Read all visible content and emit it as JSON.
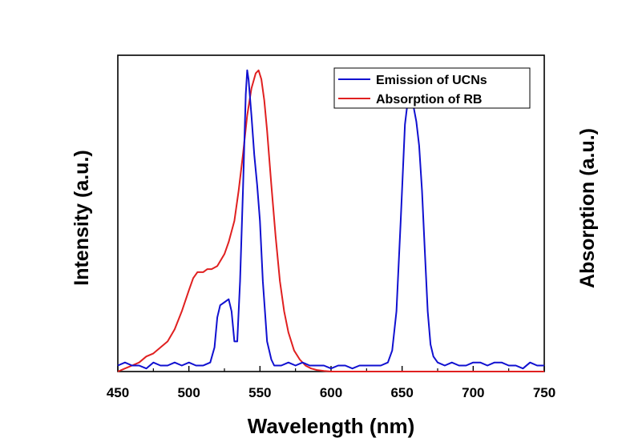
{
  "chart_data": {
    "type": "line",
    "title": "",
    "xlabel": "Wavelength (nm)",
    "ylabel_left": "Intensity (a.u.)",
    "ylabel_right": "Absorption (a.u.)",
    "xlim": [
      450,
      750
    ],
    "ylim": [
      0,
      1.05
    ],
    "x_ticks": [
      450,
      500,
      550,
      600,
      650,
      700,
      750
    ],
    "x_tick_labels": [
      "450",
      "500",
      "550",
      "600",
      "650",
      "700",
      "750"
    ],
    "y_ticks_shown": false,
    "grid": false,
    "legend_position": "top-right",
    "series": [
      {
        "name": "Emission of UCNs",
        "color": "#1010d0",
        "x": [
          450,
          455,
          460,
          465,
          470,
          475,
          480,
          485,
          490,
          495,
          500,
          505,
          510,
          515,
          518,
          520,
          522,
          525,
          528,
          530,
          532,
          534,
          536,
          538,
          540,
          541,
          542,
          544,
          546,
          548,
          550,
          552,
          555,
          558,
          560,
          565,
          570,
          575,
          580,
          585,
          590,
          595,
          600,
          605,
          610,
          615,
          620,
          625,
          630,
          635,
          640,
          643,
          646,
          649,
          652,
          654,
          656,
          658,
          660,
          662,
          664,
          666,
          668,
          670,
          672,
          675,
          680,
          685,
          690,
          695,
          700,
          705,
          710,
          715,
          720,
          725,
          730,
          735,
          740,
          745,
          750
        ],
        "y": [
          0.02,
          0.03,
          0.02,
          0.02,
          0.01,
          0.03,
          0.02,
          0.02,
          0.03,
          0.02,
          0.03,
          0.02,
          0.02,
          0.03,
          0.08,
          0.18,
          0.22,
          0.23,
          0.24,
          0.2,
          0.1,
          0.1,
          0.3,
          0.6,
          0.92,
          1.0,
          0.97,
          0.85,
          0.72,
          0.62,
          0.5,
          0.3,
          0.1,
          0.04,
          0.02,
          0.02,
          0.03,
          0.02,
          0.03,
          0.02,
          0.02,
          0.02,
          0.01,
          0.02,
          0.02,
          0.01,
          0.02,
          0.02,
          0.02,
          0.02,
          0.03,
          0.07,
          0.2,
          0.5,
          0.82,
          0.9,
          0.92,
          0.88,
          0.83,
          0.75,
          0.6,
          0.4,
          0.2,
          0.09,
          0.05,
          0.03,
          0.02,
          0.03,
          0.02,
          0.02,
          0.03,
          0.03,
          0.02,
          0.03,
          0.03,
          0.02,
          0.02,
          0.01,
          0.03,
          0.02,
          0.02
        ]
      },
      {
        "name": "Absorption of RB",
        "color": "#e02020",
        "x": [
          450,
          455,
          460,
          465,
          470,
          475,
          480,
          485,
          490,
          495,
          500,
          503,
          506,
          510,
          513,
          516,
          520,
          525,
          528,
          532,
          535,
          538,
          541,
          544,
          547,
          549,
          551,
          553,
          555,
          558,
          561,
          564,
          567,
          570,
          574,
          578,
          582,
          586,
          590,
          595,
          600,
          610,
          620,
          650,
          700,
          750
        ],
        "y": [
          0.0,
          0.01,
          0.02,
          0.03,
          0.05,
          0.06,
          0.08,
          0.1,
          0.14,
          0.2,
          0.27,
          0.31,
          0.33,
          0.33,
          0.34,
          0.34,
          0.35,
          0.39,
          0.43,
          0.5,
          0.6,
          0.72,
          0.85,
          0.94,
          0.99,
          1.0,
          0.97,
          0.9,
          0.8,
          0.62,
          0.45,
          0.3,
          0.2,
          0.13,
          0.07,
          0.04,
          0.02,
          0.01,
          0.005,
          0.002,
          0.0,
          0.0,
          0.0,
          0.0,
          0.0,
          0.0
        ]
      }
    ]
  }
}
